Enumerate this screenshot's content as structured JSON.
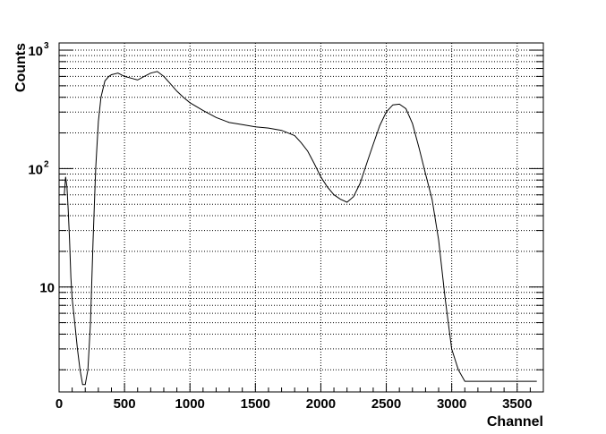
{
  "chart_data": {
    "type": "line",
    "title": "",
    "xlabel": "Channel",
    "ylabel": "Counts",
    "xlim": [
      0,
      3700
    ],
    "ylim": [
      1.3,
      1150
    ],
    "yscale": "log",
    "grid": true,
    "legend": "none",
    "line_color": "#000000",
    "x_ticks": [
      0,
      500,
      1000,
      1500,
      2000,
      2500,
      3000,
      3500
    ],
    "x_tick_labels": [
      "0",
      "500",
      "1000",
      "1500",
      "2000",
      "2500",
      "3000",
      "3500"
    ],
    "y_ticks": [
      {
        "value": 10,
        "base": "10",
        "exp": ""
      },
      {
        "value": 100,
        "base": "10",
        "exp": "2"
      },
      {
        "value": 1000,
        "base": "10",
        "exp": "3"
      }
    ],
    "series": [
      {
        "x": [
          40,
          50,
          60,
          70,
          80,
          90,
          100,
          120,
          140,
          160,
          180,
          200,
          220,
          240,
          260,
          280,
          300,
          320,
          350,
          380,
          400,
          450,
          500,
          550,
          600,
          650,
          700,
          750,
          800,
          850,
          900,
          950,
          1000,
          1100,
          1200,
          1300,
          1400,
          1500,
          1600,
          1700,
          1800,
          1850,
          1900,
          1950,
          2000,
          2050,
          2100,
          2150,
          2200,
          2250,
          2300,
          2350,
          2400,
          2450,
          2500,
          2550,
          2600,
          2650,
          2700,
          2750,
          2800,
          2850,
          2900,
          2950,
          3000,
          3050,
          3100,
          3200,
          3300,
          3400,
          3500,
          3600,
          3650
        ],
        "y": [
          60,
          85,
          70,
          45,
          25,
          12,
          8,
          5,
          3,
          2,
          1.5,
          1.5,
          2,
          5,
          25,
          100,
          250,
          400,
          550,
          600,
          620,
          640,
          600,
          580,
          560,
          600,
          640,
          660,
          600,
          520,
          450,
          400,
          360,
          310,
          270,
          245,
          235,
          225,
          220,
          210,
          190,
          165,
          140,
          110,
          85,
          70,
          60,
          55,
          52,
          58,
          75,
          110,
          160,
          230,
          300,
          345,
          350,
          320,
          240,
          150,
          90,
          55,
          25,
          8,
          3,
          2,
          1.6,
          1.6,
          1.6,
          1.6,
          1.6,
          1.6,
          1.6
        ]
      }
    ]
  }
}
